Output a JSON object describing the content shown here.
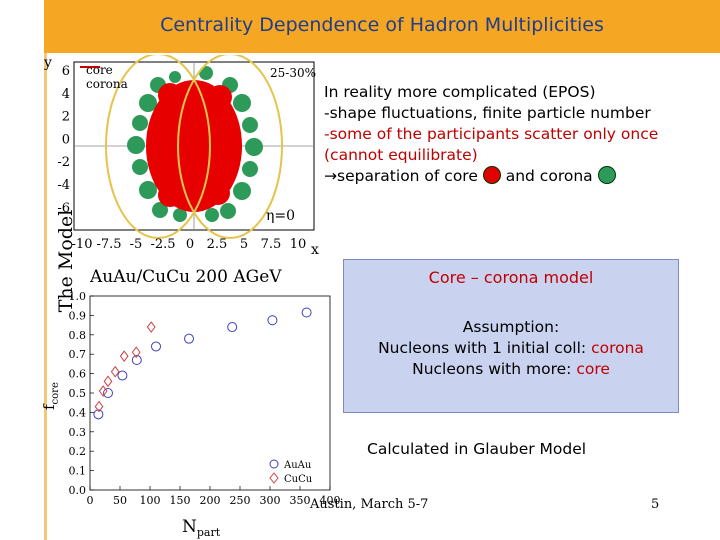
{
  "title": "Centrality Dependence of Hadron Multiplicities",
  "side_label": "The Model",
  "text_block": {
    "line1": "In reality more complicated (EPOS)",
    "line2": "-shape fluctuations, finite particle number",
    "line3": "-some of the participants scatter only once",
    "line4": " (cannot equilibrate)",
    "line5_prefix": "→separation of core ",
    "line5_mid": " and corona ",
    "core_color": "#e00000",
    "corona_color": "#2e9a5a"
  },
  "box": {
    "heading": "Core – corona model",
    "line1": "Assumption:",
    "line2_prefix": "Nucleons with 1 initial coll: ",
    "line2_red": "corona",
    "line3_prefix": "Nucleons with more: ",
    "line3_red": "core"
  },
  "glauber": "Calculated in Glauber Model",
  "footer": {
    "center": "Austin, March 5-7",
    "page": "5"
  },
  "top_plot": {
    "ylabel": "y",
    "xlabel": "x",
    "yticks": [
      "6",
      "4",
      "2",
      "0",
      "-2",
      "-4",
      "-6"
    ],
    "xticks": [
      "-10",
      "-7.5",
      "-5",
      "-2.5",
      "0",
      "2.5",
      "5",
      "7.5",
      "10"
    ],
    "legend_core": "core",
    "legend_corona": "corona",
    "centrality": "25-30%",
    "eta": "η=0"
  },
  "chart_data": {
    "type": "scatter",
    "title": "AuAu/CuCu 200 AGeV",
    "xlabel": "N_part",
    "ylabel": "f_core",
    "xlim": [
      0,
      400
    ],
    "ylim": [
      0,
      1.0
    ],
    "xticks": [
      "0",
      "50",
      "100",
      "150",
      "200",
      "250",
      "300",
      "350",
      "400"
    ],
    "yticks": [
      "0.0",
      "0.1",
      "0.2",
      "0.3",
      "0.4",
      "0.5",
      "0.6",
      "0.7",
      "0.8",
      "0.9",
      "1.0"
    ],
    "legend": [
      "AuAu",
      "CuCu"
    ],
    "series": [
      {
        "name": "AuAu",
        "marker": "circle",
        "color": "#4040c0",
        "x": [
          14,
          30,
          54,
          78,
          110,
          165,
          237,
          304,
          361
        ],
        "y": [
          0.39,
          0.5,
          0.59,
          0.67,
          0.74,
          0.78,
          0.84,
          0.875,
          0.915
        ]
      },
      {
        "name": "CuCu",
        "marker": "diamond",
        "color": "#d04040",
        "x": [
          15,
          22,
          30,
          42,
          57,
          77,
          102
        ],
        "y": [
          0.43,
          0.51,
          0.56,
          0.61,
          0.69,
          0.71,
          0.84
        ]
      }
    ]
  }
}
